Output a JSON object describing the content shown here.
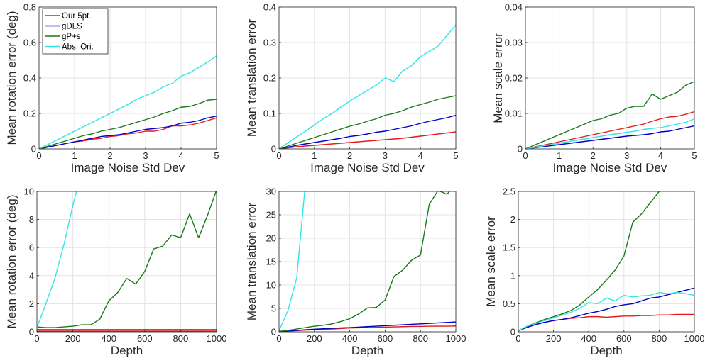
{
  "legend": {
    "entries": [
      {
        "label": "Our 5pt.",
        "color": "#e41a1c"
      },
      {
        "label": "gDLS",
        "color": "#0000cc"
      },
      {
        "label": "gP+s",
        "color": "#1a7a1a"
      },
      {
        "label": "Abs. Ori.",
        "color": "#33e6e6"
      }
    ]
  },
  "chart_data": [
    {
      "type": "line",
      "xlabel": "Image Noise Std Dev",
      "ylabel": "Mean rotation error (deg)",
      "xlim": [
        0,
        5
      ],
      "ylim": [
        0,
        0.8
      ],
      "xticks": [
        0,
        1,
        2,
        3,
        4,
        5
      ],
      "yticks": [
        0,
        0.2,
        0.4,
        0.6,
        0.8
      ],
      "ytick_labels": [
        "0",
        "0.2",
        "0.4",
        "0.6",
        "0.8"
      ],
      "x": [
        0,
        0.25,
        0.5,
        0.75,
        1,
        1.25,
        1.5,
        1.75,
        2,
        2.25,
        2.5,
        2.75,
        3,
        3.25,
        3.5,
        3.75,
        4,
        4.25,
        4.5,
        4.75,
        5
      ],
      "series": [
        {
          "name": "Our 5pt.",
          "color": "#e41a1c",
          "values": [
            0,
            0.01,
            0.02,
            0.03,
            0.04,
            0.045,
            0.055,
            0.06,
            0.07,
            0.075,
            0.085,
            0.09,
            0.1,
            0.1,
            0.11,
            0.13,
            0.13,
            0.135,
            0.145,
            0.16,
            0.175
          ]
        },
        {
          "name": "gDLS",
          "color": "#0000cc",
          "values": [
            0,
            0.01,
            0.02,
            0.03,
            0.04,
            0.05,
            0.06,
            0.07,
            0.075,
            0.08,
            0.09,
            0.1,
            0.11,
            0.115,
            0.12,
            0.13,
            0.145,
            0.15,
            0.16,
            0.175,
            0.185
          ]
        },
        {
          "name": "gP+s",
          "color": "#1a7a1a",
          "values": [
            0,
            0.015,
            0.03,
            0.045,
            0.06,
            0.075,
            0.085,
            0.1,
            0.11,
            0.12,
            0.135,
            0.15,
            0.165,
            0.18,
            0.2,
            0.215,
            0.235,
            0.24,
            0.255,
            0.275,
            0.28
          ]
        },
        {
          "name": "Abs. Ori.",
          "color": "#33e6e6",
          "values": [
            0,
            0.025,
            0.05,
            0.075,
            0.1,
            0.125,
            0.15,
            0.175,
            0.2,
            0.225,
            0.25,
            0.28,
            0.3,
            0.32,
            0.35,
            0.37,
            0.41,
            0.43,
            0.46,
            0.49,
            0.525
          ]
        }
      ]
    },
    {
      "type": "line",
      "xlabel": "Image Noise Std Dev",
      "ylabel": "Mean translation error",
      "xlim": [
        0,
        5
      ],
      "ylim": [
        0,
        0.4
      ],
      "xticks": [
        0,
        1,
        2,
        3,
        4,
        5
      ],
      "yticks": [
        0,
        0.1,
        0.2,
        0.3,
        0.4
      ],
      "ytick_labels": [
        "0",
        "0.1",
        "0.2",
        "0.3",
        "0.4"
      ],
      "x": [
        0,
        0.25,
        0.5,
        0.75,
        1,
        1.25,
        1.5,
        1.75,
        2,
        2.25,
        2.5,
        2.75,
        3,
        3.25,
        3.5,
        3.75,
        4,
        4.25,
        4.5,
        4.75,
        5
      ],
      "series": [
        {
          "name": "Our 5pt.",
          "color": "#e41a1c",
          "values": [
            0,
            0.003,
            0.006,
            0.008,
            0.01,
            0.012,
            0.014,
            0.016,
            0.018,
            0.02,
            0.022,
            0.024,
            0.026,
            0.028,
            0.03,
            0.033,
            0.036,
            0.039,
            0.042,
            0.045,
            0.048
          ]
        },
        {
          "name": "gDLS",
          "color": "#0000cc",
          "values": [
            0,
            0.005,
            0.01,
            0.014,
            0.018,
            0.022,
            0.026,
            0.03,
            0.035,
            0.038,
            0.042,
            0.047,
            0.05,
            0.055,
            0.06,
            0.065,
            0.072,
            0.078,
            0.083,
            0.088,
            0.095
          ]
        },
        {
          "name": "gP+s",
          "color": "#1a7a1a",
          "values": [
            0,
            0.008,
            0.016,
            0.024,
            0.032,
            0.04,
            0.048,
            0.056,
            0.064,
            0.07,
            0.078,
            0.085,
            0.095,
            0.1,
            0.108,
            0.118,
            0.125,
            0.132,
            0.14,
            0.145,
            0.15
          ]
        },
        {
          "name": "Abs. Ori.",
          "color": "#33e6e6",
          "values": [
            0,
            0.017,
            0.034,
            0.05,
            0.068,
            0.085,
            0.1,
            0.118,
            0.135,
            0.15,
            0.165,
            0.18,
            0.2,
            0.19,
            0.22,
            0.235,
            0.26,
            0.275,
            0.29,
            0.32,
            0.35
          ]
        }
      ]
    },
    {
      "type": "line",
      "xlabel": "Image Noise Std Dev",
      "ylabel": "Mean scale error",
      "xlim": [
        0,
        5
      ],
      "ylim": [
        0,
        0.04
      ],
      "xticks": [
        0,
        1,
        2,
        3,
        4,
        5
      ],
      "yticks": [
        0,
        0.01,
        0.02,
        0.03,
        0.04
      ],
      "ytick_labels": [
        "0",
        "0.01",
        "0.02",
        "0.03",
        "0.04"
      ],
      "x": [
        0,
        0.25,
        0.5,
        0.75,
        1,
        1.25,
        1.5,
        1.75,
        2,
        2.25,
        2.5,
        2.75,
        3,
        3.25,
        3.5,
        3.75,
        4,
        4.25,
        4.5,
        4.75,
        5
      ],
      "series": [
        {
          "name": "Our 5pt.",
          "color": "#e41a1c",
          "values": [
            0,
            0.0005,
            0.001,
            0.0015,
            0.002,
            0.0025,
            0.003,
            0.0035,
            0.004,
            0.0045,
            0.005,
            0.0055,
            0.006,
            0.0065,
            0.007,
            0.0078,
            0.0085,
            0.009,
            0.0092,
            0.0098,
            0.0105
          ]
        },
        {
          "name": "gDLS",
          "color": "#0000cc",
          "values": [
            0,
            0.0003,
            0.0006,
            0.0009,
            0.0012,
            0.0015,
            0.0018,
            0.0021,
            0.0024,
            0.0027,
            0.003,
            0.0033,
            0.0036,
            0.0038,
            0.004,
            0.0043,
            0.0048,
            0.005,
            0.0055,
            0.006,
            0.0065
          ]
        },
        {
          "name": "gP+s",
          "color": "#1a7a1a",
          "values": [
            0,
            0.001,
            0.002,
            0.003,
            0.004,
            0.005,
            0.006,
            0.007,
            0.008,
            0.0085,
            0.0095,
            0.01,
            0.0115,
            0.012,
            0.012,
            0.0155,
            0.014,
            0.015,
            0.016,
            0.018,
            0.019
          ]
        },
        {
          "name": "Abs. Ori.",
          "color": "#33e6e6",
          "values": [
            0,
            0.0004,
            0.0008,
            0.0012,
            0.0016,
            0.002,
            0.0024,
            0.0028,
            0.0032,
            0.0036,
            0.004,
            0.0043,
            0.0047,
            0.005,
            0.0055,
            0.0058,
            0.006,
            0.0065,
            0.007,
            0.0075,
            0.0085
          ]
        }
      ]
    },
    {
      "type": "line",
      "xlabel": "Depth",
      "ylabel": "Mean rotation error (deg)",
      "xlim": [
        0,
        1000
      ],
      "ylim": [
        0,
        10
      ],
      "xticks": [
        0,
        200,
        400,
        600,
        800,
        1000
      ],
      "yticks": [
        0,
        2,
        4,
        6,
        8,
        10
      ],
      "ytick_labels": [
        "0",
        "2",
        "4",
        "6",
        "8",
        "10"
      ],
      "x": [
        0,
        50,
        100,
        150,
        200,
        250,
        300,
        350,
        400,
        450,
        500,
        550,
        600,
        650,
        700,
        750,
        800,
        850,
        900,
        950,
        1000
      ],
      "series": [
        {
          "name": "Our 5pt.",
          "color": "#e41a1c",
          "values": [
            0.05,
            0.05,
            0.05,
            0.05,
            0.05,
            0.05,
            0.05,
            0.05,
            0.05,
            0.05,
            0.05,
            0.05,
            0.05,
            0.05,
            0.05,
            0.05,
            0.05,
            0.05,
            0.05,
            0.05,
            0.05
          ]
        },
        {
          "name": "gDLS",
          "color": "#0000cc",
          "values": [
            0.15,
            0.15,
            0.15,
            0.15,
            0.15,
            0.15,
            0.15,
            0.15,
            0.15,
            0.15,
            0.15,
            0.15,
            0.15,
            0.15,
            0.15,
            0.15,
            0.15,
            0.15,
            0.15,
            0.15,
            0.15
          ]
        },
        {
          "name": "gP+s",
          "color": "#1a7a1a",
          "values": [
            0.35,
            0.3,
            0.3,
            0.35,
            0.4,
            0.5,
            0.5,
            0.9,
            2.2,
            2.8,
            3.8,
            3.4,
            4.3,
            5.9,
            6.1,
            6.9,
            6.7,
            8.4,
            6.7,
            8.3,
            10.1
          ]
        },
        {
          "name": "Abs. Ori.",
          "color": "#33e6e6",
          "values": [
            0.3,
            2.0,
            3.8,
            6.2,
            9.0,
            11.5,
            null,
            null,
            null,
            null,
            null,
            null,
            null,
            null,
            null,
            null,
            null,
            null,
            null,
            null,
            null
          ]
        }
      ]
    },
    {
      "type": "line",
      "xlabel": "Depth",
      "ylabel": "Mean translation error",
      "xlim": [
        0,
        1000
      ],
      "ylim": [
        0,
        30
      ],
      "xticks": [
        0,
        200,
        400,
        600,
        800,
        1000
      ],
      "yticks": [
        0,
        5,
        10,
        15,
        20,
        25,
        30
      ],
      "ytick_labels": [
        "0",
        "5",
        "10",
        "15",
        "20",
        "25",
        "30"
      ],
      "x": [
        0,
        50,
        100,
        150,
        200,
        250,
        300,
        350,
        400,
        450,
        500,
        550,
        600,
        650,
        700,
        750,
        800,
        850,
        900,
        950,
        1000
      ],
      "series": [
        {
          "name": "Our 5pt.",
          "color": "#e41a1c",
          "values": [
            0.05,
            0.15,
            0.25,
            0.35,
            0.45,
            0.55,
            0.6,
            0.7,
            0.8,
            0.85,
            0.9,
            0.95,
            1.0,
            1.05,
            1.1,
            1.15,
            1.15,
            1.2,
            1.2,
            1.2,
            1.25
          ]
        },
        {
          "name": "gDLS",
          "color": "#0000cc",
          "values": [
            0.05,
            0.2,
            0.3,
            0.45,
            0.55,
            0.65,
            0.75,
            0.85,
            0.9,
            1.0,
            1.1,
            1.2,
            1.3,
            1.4,
            1.5,
            1.6,
            1.7,
            1.8,
            1.9,
            2.0,
            2.1
          ]
        },
        {
          "name": "gP+s",
          "color": "#1a7a1a",
          "values": [
            0.1,
            0.3,
            0.6,
            0.9,
            1.2,
            1.4,
            1.7,
            2.2,
            2.8,
            3.8,
            5.1,
            5.2,
            6.8,
            11.8,
            13.2,
            15.3,
            16.4,
            27.3,
            30.2,
            29.4,
            31.5
          ]
        },
        {
          "name": "Abs. Ori.",
          "color": "#33e6e6",
          "values": [
            0.2,
            4.5,
            11.5,
            32,
            null,
            null,
            null,
            null,
            null,
            null,
            null,
            null,
            null,
            null,
            null,
            null,
            null,
            null,
            null,
            null,
            null
          ]
        }
      ]
    },
    {
      "type": "line",
      "xlabel": "Depth",
      "ylabel": "Mean scale error",
      "xlim": [
        0,
        1000
      ],
      "ylim": [
        0,
        2.5
      ],
      "xticks": [
        0,
        200,
        400,
        600,
        800,
        1000
      ],
      "yticks": [
        0,
        0.5,
        1,
        1.5,
        2,
        2.5
      ],
      "ytick_labels": [
        "0",
        "0.5",
        "1",
        "1.5",
        "2",
        "2.5"
      ],
      "x": [
        0,
        50,
        100,
        150,
        200,
        250,
        300,
        350,
        400,
        450,
        500,
        550,
        600,
        650,
        700,
        750,
        800,
        850,
        900,
        950,
        1000
      ],
      "series": [
        {
          "name": "Our 5pt.",
          "color": "#e41a1c",
          "values": [
            0.02,
            0.08,
            0.13,
            0.17,
            0.2,
            0.22,
            0.24,
            0.25,
            0.27,
            0.27,
            0.26,
            0.27,
            0.28,
            0.28,
            0.29,
            0.29,
            0.3,
            0.3,
            0.31,
            0.31,
            0.31
          ]
        },
        {
          "name": "gDLS",
          "color": "#0000cc",
          "values": [
            0.02,
            0.08,
            0.13,
            0.17,
            0.2,
            0.22,
            0.25,
            0.29,
            0.33,
            0.36,
            0.4,
            0.45,
            0.48,
            0.5,
            0.55,
            0.6,
            0.62,
            0.66,
            0.7,
            0.74,
            0.78
          ]
        },
        {
          "name": "gP+s",
          "color": "#1a7a1a",
          "values": [
            0.02,
            0.1,
            0.16,
            0.22,
            0.27,
            0.32,
            0.38,
            0.48,
            0.62,
            0.75,
            0.92,
            1.1,
            1.35,
            1.95,
            2.1,
            2.3,
            2.5,
            null,
            null,
            null,
            null
          ]
        },
        {
          "name": "Abs. Ori.",
          "color": "#33e6e6",
          "values": [
            0.02,
            0.1,
            0.15,
            0.2,
            0.25,
            0.3,
            0.35,
            0.42,
            0.52,
            0.5,
            0.6,
            0.55,
            0.65,
            0.62,
            0.64,
            0.65,
            0.7,
            0.68,
            0.7,
            0.68,
            0.65
          ]
        }
      ]
    }
  ]
}
